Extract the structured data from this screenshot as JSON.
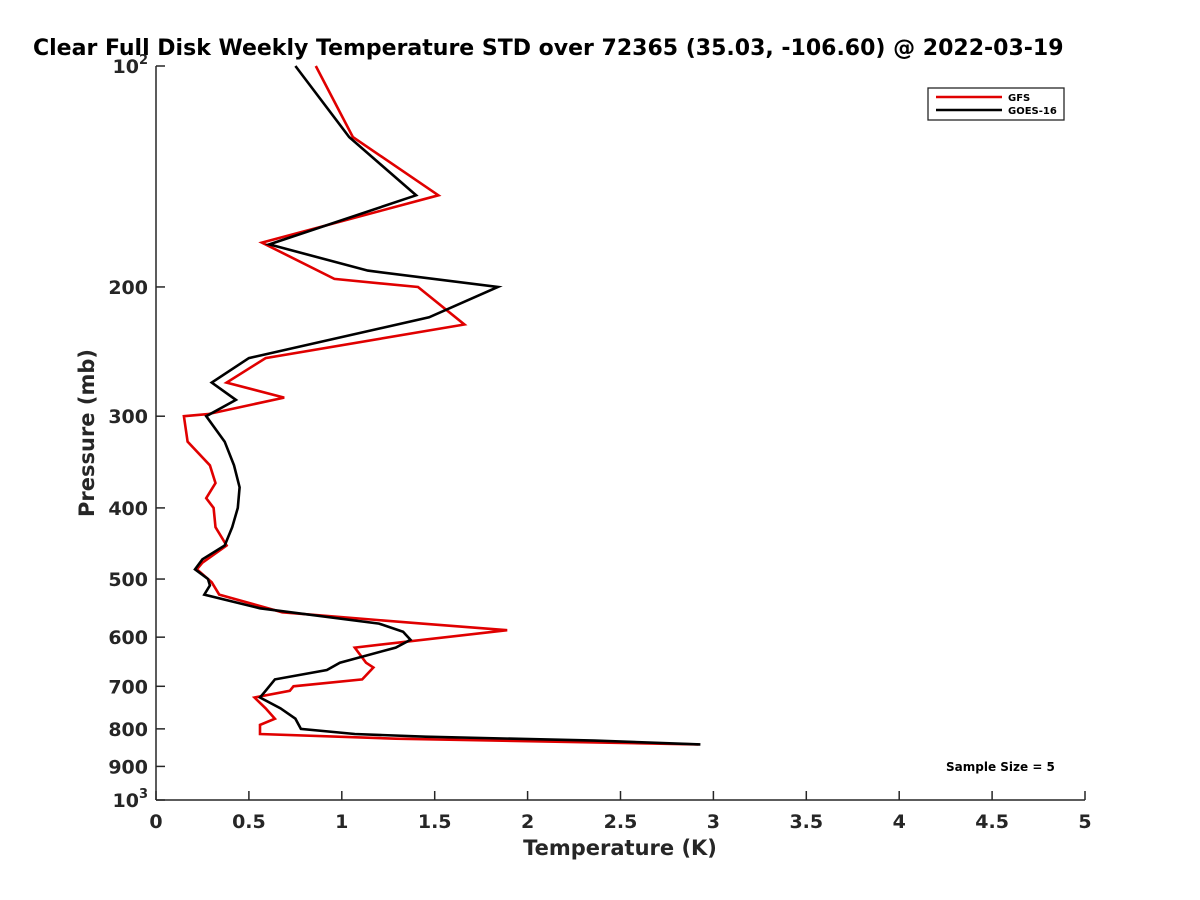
{
  "chart_data": {
    "type": "line",
    "title": "Clear Full Disk Weekly Temperature STD over 72365 (35.03, -106.60) @ 2022-03-19",
    "xlabel": "Temperature (K)",
    "ylabel": "Pressure (mb)",
    "xlim": [
      0,
      5
    ],
    "ylim": [
      100,
      1000
    ],
    "y_scale": "log",
    "y_reversed": true,
    "x_ticks": [
      "0",
      "0.5",
      "1",
      "1.5",
      "2",
      "2.5",
      "3",
      "3.5",
      "4",
      "4.5",
      "5"
    ],
    "y_ticks": [
      {
        "value": 100,
        "base": "10",
        "exp": "2"
      },
      {
        "value": 200,
        "label": "200"
      },
      {
        "value": 300,
        "label": "300"
      },
      {
        "value": 400,
        "label": "400"
      },
      {
        "value": 500,
        "label": "500"
      },
      {
        "value": 600,
        "label": "600"
      },
      {
        "value": 700,
        "label": "700"
      },
      {
        "value": 800,
        "label": "800"
      },
      {
        "value": 900,
        "label": "900"
      },
      {
        "value": 1000,
        "base": "10",
        "exp": "3"
      }
    ],
    "grid": false,
    "legend_position": "top-right",
    "annotation": "Sample Size = 5",
    "series": [
      {
        "name": "GFS",
        "color": "#e00000",
        "points": [
          [
            0.86,
            100
          ],
          [
            1.06,
            125
          ],
          [
            1.52,
            150
          ],
          [
            0.57,
            174
          ],
          [
            0.96,
            195
          ],
          [
            1.41,
            200
          ],
          [
            1.66,
            225
          ],
          [
            0.59,
            250
          ],
          [
            0.38,
            270
          ],
          [
            0.69,
            283
          ],
          [
            0.28,
            298
          ],
          [
            0.15,
            300
          ],
          [
            0.17,
            325
          ],
          [
            0.29,
            350
          ],
          [
            0.32,
            370
          ],
          [
            0.27,
            388
          ],
          [
            0.31,
            400
          ],
          [
            0.32,
            425
          ],
          [
            0.38,
            450
          ],
          [
            0.25,
            475
          ],
          [
            0.22,
            485
          ],
          [
            0.3,
            505
          ],
          [
            0.34,
            525
          ],
          [
            0.68,
            555
          ],
          [
            1.43,
            575
          ],
          [
            1.89,
            587
          ],
          [
            1.07,
            620
          ],
          [
            1.13,
            650
          ],
          [
            1.17,
            660
          ],
          [
            1.11,
            685
          ],
          [
            0.74,
            700
          ],
          [
            0.72,
            710
          ],
          [
            0.53,
            725
          ],
          [
            0.59,
            750
          ],
          [
            0.64,
            775
          ],
          [
            0.56,
            790
          ],
          [
            0.56,
            813
          ],
          [
            1.29,
            825
          ],
          [
            1.83,
            830
          ],
          [
            2.92,
            840
          ]
        ]
      },
      {
        "name": "GOES-16",
        "color": "#000000",
        "points": [
          [
            0.75,
            100
          ],
          [
            1.04,
            125
          ],
          [
            1.4,
            150
          ],
          [
            0.61,
            175
          ],
          [
            1.14,
            190
          ],
          [
            1.84,
            200
          ],
          [
            1.47,
            220
          ],
          [
            0.5,
            250
          ],
          [
            0.3,
            270
          ],
          [
            0.43,
            285
          ],
          [
            0.27,
            300
          ],
          [
            0.37,
            325
          ],
          [
            0.42,
            350
          ],
          [
            0.45,
            375
          ],
          [
            0.44,
            400
          ],
          [
            0.41,
            425
          ],
          [
            0.37,
            450
          ],
          [
            0.25,
            470
          ],
          [
            0.21,
            485
          ],
          [
            0.28,
            500
          ],
          [
            0.29,
            510
          ],
          [
            0.26,
            525
          ],
          [
            0.56,
            548
          ],
          [
            1.2,
            575
          ],
          [
            1.33,
            590
          ],
          [
            1.37,
            605
          ],
          [
            1.29,
            620
          ],
          [
            0.99,
            650
          ],
          [
            0.92,
            665
          ],
          [
            0.64,
            685
          ],
          [
            0.59,
            710
          ],
          [
            0.56,
            725
          ],
          [
            0.67,
            750
          ],
          [
            0.75,
            775
          ],
          [
            0.78,
            800
          ],
          [
            1.07,
            813
          ],
          [
            1.45,
            820
          ],
          [
            2.36,
            830
          ],
          [
            2.93,
            840
          ]
        ]
      }
    ]
  }
}
